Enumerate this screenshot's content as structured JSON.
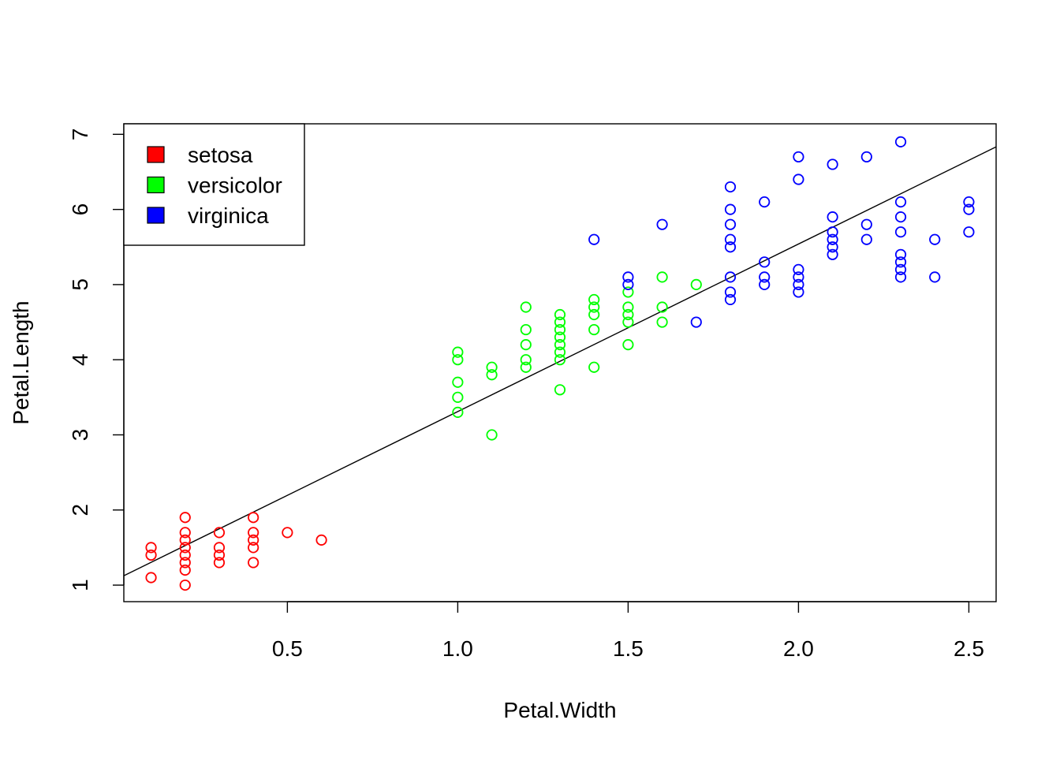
{
  "chart_data": {
    "type": "scatter",
    "title": "",
    "xlabel": "Petal.Width",
    "ylabel": "Petal.Length",
    "xlim": [
      0.02,
      2.58
    ],
    "ylim": [
      0.78,
      7.14
    ],
    "x_ticks": [
      0.5,
      1.0,
      1.5,
      2.0,
      2.5
    ],
    "x_tick_labels": [
      "0.5",
      "1.0",
      "1.5",
      "2.0",
      "2.5"
    ],
    "y_ticks": [
      1,
      2,
      3,
      4,
      5,
      6,
      7
    ],
    "y_tick_labels": [
      "1",
      "2",
      "3",
      "4",
      "5",
      "6",
      "7"
    ],
    "grid": false,
    "legend_position": "top-left",
    "series": [
      {
        "name": "setosa",
        "color": "#ff0000",
        "points": [
          [
            0.1,
            1.5
          ],
          [
            0.1,
            1.4
          ],
          [
            0.1,
            1.1
          ],
          [
            0.2,
            1.9
          ],
          [
            0.2,
            1.7
          ],
          [
            0.2,
            1.6
          ],
          [
            0.2,
            1.5
          ],
          [
            0.2,
            1.4
          ],
          [
            0.2,
            1.3
          ],
          [
            0.2,
            1.2
          ],
          [
            0.2,
            1.0
          ],
          [
            0.3,
            1.7
          ],
          [
            0.3,
            1.5
          ],
          [
            0.3,
            1.4
          ],
          [
            0.3,
            1.3
          ],
          [
            0.4,
            1.9
          ],
          [
            0.4,
            1.7
          ],
          [
            0.4,
            1.6
          ],
          [
            0.4,
            1.5
          ],
          [
            0.4,
            1.3
          ],
          [
            0.5,
            1.7
          ],
          [
            0.6,
            1.6
          ]
        ]
      },
      {
        "name": "versicolor",
        "color": "#00ff00",
        "points": [
          [
            1.0,
            4.1
          ],
          [
            1.0,
            4.0
          ],
          [
            1.0,
            3.7
          ],
          [
            1.0,
            3.5
          ],
          [
            1.0,
            3.3
          ],
          [
            1.1,
            3.9
          ],
          [
            1.1,
            3.8
          ],
          [
            1.1,
            3.0
          ],
          [
            1.2,
            4.7
          ],
          [
            1.2,
            4.4
          ],
          [
            1.2,
            4.2
          ],
          [
            1.2,
            4.0
          ],
          [
            1.2,
            3.9
          ],
          [
            1.3,
            4.6
          ],
          [
            1.3,
            4.5
          ],
          [
            1.3,
            4.4
          ],
          [
            1.3,
            4.3
          ],
          [
            1.3,
            4.2
          ],
          [
            1.3,
            4.1
          ],
          [
            1.3,
            4.0
          ],
          [
            1.3,
            3.6
          ],
          [
            1.4,
            4.8
          ],
          [
            1.4,
            4.7
          ],
          [
            1.4,
            4.6
          ],
          [
            1.4,
            4.4
          ],
          [
            1.4,
            3.9
          ],
          [
            1.5,
            4.9
          ],
          [
            1.5,
            4.7
          ],
          [
            1.5,
            4.6
          ],
          [
            1.5,
            4.5
          ],
          [
            1.5,
            4.2
          ],
          [
            1.6,
            5.1
          ],
          [
            1.6,
            4.7
          ],
          [
            1.6,
            4.5
          ],
          [
            1.7,
            5.0
          ]
        ]
      },
      {
        "name": "virginica",
        "color": "#0000ff",
        "points": [
          [
            1.4,
            5.6
          ],
          [
            1.5,
            5.1
          ],
          [
            1.5,
            5.0
          ],
          [
            1.6,
            5.8
          ],
          [
            1.7,
            4.5
          ],
          [
            1.8,
            6.3
          ],
          [
            1.8,
            6.0
          ],
          [
            1.8,
            5.8
          ],
          [
            1.8,
            5.6
          ],
          [
            1.8,
            5.5
          ],
          [
            1.8,
            5.1
          ],
          [
            1.8,
            4.9
          ],
          [
            1.8,
            4.8
          ],
          [
            1.9,
            6.1
          ],
          [
            1.9,
            5.3
          ],
          [
            1.9,
            5.1
          ],
          [
            1.9,
            5.0
          ],
          [
            2.0,
            6.7
          ],
          [
            2.0,
            6.4
          ],
          [
            2.0,
            5.2
          ],
          [
            2.0,
            5.1
          ],
          [
            2.0,
            5.0
          ],
          [
            2.0,
            4.9
          ],
          [
            2.1,
            6.6
          ],
          [
            2.1,
            5.9
          ],
          [
            2.1,
            5.7
          ],
          [
            2.1,
            5.6
          ],
          [
            2.1,
            5.5
          ],
          [
            2.1,
            5.4
          ],
          [
            2.2,
            6.7
          ],
          [
            2.2,
            5.8
          ],
          [
            2.2,
            5.6
          ],
          [
            2.3,
            6.9
          ],
          [
            2.3,
            6.1
          ],
          [
            2.3,
            5.9
          ],
          [
            2.3,
            5.7
          ],
          [
            2.3,
            5.4
          ],
          [
            2.3,
            5.3
          ],
          [
            2.3,
            5.2
          ],
          [
            2.3,
            5.1
          ],
          [
            2.4,
            5.6
          ],
          [
            2.4,
            5.1
          ],
          [
            2.5,
            6.1
          ],
          [
            2.5,
            6.0
          ],
          [
            2.5,
            5.7
          ]
        ]
      }
    ],
    "regression_line": {
      "intercept": 1.08,
      "slope": 2.23,
      "color": "#000000"
    }
  }
}
